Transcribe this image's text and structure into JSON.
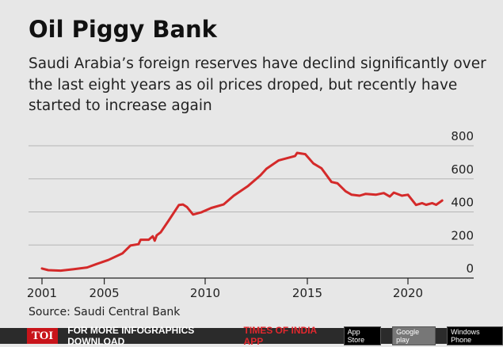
{
  "title": "Oil Piggy Bank",
  "subtitle": "Saudi Arabia’s foreign reserves have declind significantly over the last eight years as oil prices droped, but recently have started to increase again",
  "source": "Source: Saudi Central Bank",
  "footer": {
    "logo": "TOI",
    "text": "FOR MORE  INFOGRAPHICS DOWNLOAD",
    "app": "TIMES OF INDIA APP",
    "badges": [
      "App Store",
      "Google play",
      "Windows Phone"
    ]
  },
  "colors": {
    "line": "#d42a2a",
    "grid": "#b5b5b5"
  },
  "chart_data": {
    "type": "line",
    "title": "Oil Piggy Bank",
    "xlabel": "",
    "ylabel": "",
    "ylim": [
      0,
      800
    ],
    "yticks": [
      0,
      200,
      400,
      600,
      800
    ],
    "xticks": [
      {
        "label": "2001",
        "year": 2001
      },
      {
        "label": "2005",
        "year": 2005
      },
      {
        "label": "2010",
        "year": 2010
      },
      {
        "label": "2015",
        "year": 2015
      },
      {
        "label": "2020",
        "year": 2020
      }
    ],
    "grid": true,
    "series": [
      {
        "name": "Foreign reserves",
        "x": [
          2001.0,
          2001.4,
          2002.2,
          2003.0,
          2003.9,
          2004.5,
          2005.2,
          2005.9,
          2006.3,
          2006.7,
          2006.8,
          2007.2,
          2007.4,
          2007.5,
          2007.6,
          2007.8,
          2008.2,
          2008.7,
          2008.9,
          2009.1,
          2009.4,
          2009.8,
          2010.3,
          2010.9,
          2011.4,
          2012.1,
          2012.7,
          2013.0,
          2013.6,
          2014.4,
          2014.5,
          2014.9,
          2015.3,
          2015.7,
          2016.2,
          2016.5,
          2016.9,
          2017.2,
          2017.6,
          2017.9,
          2018.4,
          2018.8,
          2019.1,
          2019.3,
          2019.7,
          2020.0,
          2020.4,
          2020.7,
          2020.9,
          2021.2,
          2021.4,
          2021.7
        ],
        "values": [
          58,
          48,
          45,
          53,
          64,
          85,
          109,
          149,
          197,
          205,
          232,
          232,
          253,
          226,
          258,
          277,
          349,
          442,
          445,
          429,
          384,
          397,
          424,
          445,
          498,
          557,
          621,
          661,
          712,
          738,
          757,
          749,
          693,
          664,
          581,
          573,
          525,
          504,
          498,
          509,
          504,
          514,
          493,
          517,
          498,
          504,
          442,
          453,
          443,
          453,
          443,
          469
        ]
      }
    ]
  }
}
